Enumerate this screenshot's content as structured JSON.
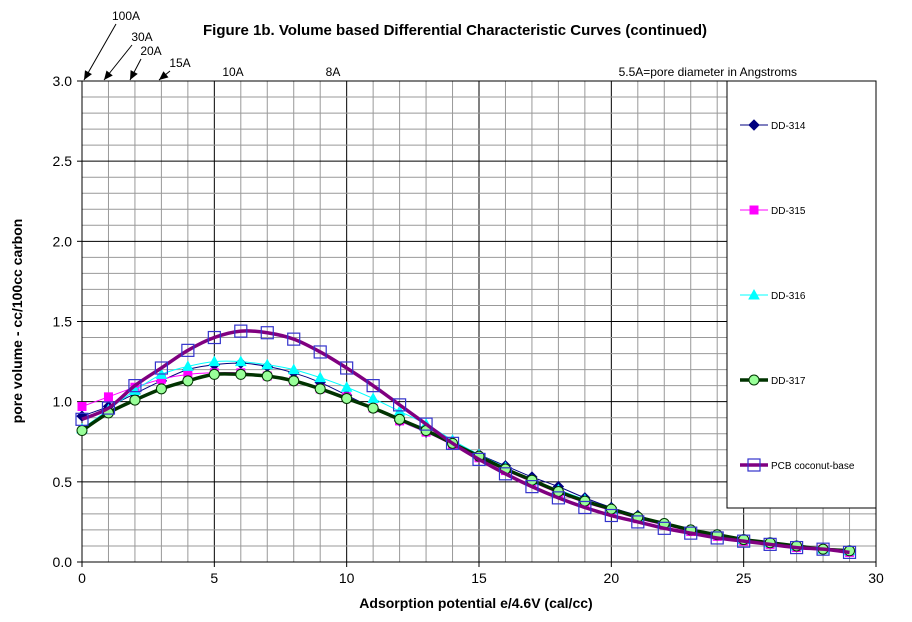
{
  "chart_data": {
    "type": "line",
    "title": "Figure 1b. Volume based Differential Characteristic Curves (continued)",
    "xlabel": "Adsorption potential e/4.6V (cal/cc)",
    "ylabel": "pore volume - cc/100cc carbon",
    "xlim": [
      0,
      30
    ],
    "ylim": [
      0,
      3.0
    ],
    "x_ticks": [
      "0",
      "5",
      "10",
      "15",
      "20",
      "25",
      "30"
    ],
    "y_ticks": [
      "0.0",
      "0.5",
      "1.0",
      "1.5",
      "2.0",
      "2.5",
      "3.0"
    ],
    "x_tick_values": [
      0,
      5,
      10,
      15,
      20,
      25,
      30
    ],
    "y_tick_values": [
      0,
      0.5,
      1.0,
      1.5,
      2.0,
      2.5,
      3.0
    ],
    "grid": true,
    "legend_position": "right",
    "x": [
      0,
      1,
      2,
      3,
      4,
      5,
      6,
      7,
      8,
      9,
      10,
      11,
      12,
      13,
      14,
      15,
      16,
      17,
      18,
      19,
      20,
      21,
      22,
      23,
      24,
      25,
      26,
      27,
      28,
      29
    ],
    "series": [
      {
        "name": "DD-314",
        "color": "#000080",
        "marker": "diamond",
        "values": [
          0.91,
          0.97,
          1.05,
          1.13,
          1.2,
          1.23,
          1.24,
          1.22,
          1.18,
          1.12,
          1.04,
          0.96,
          0.88,
          0.81,
          0.74,
          0.67,
          0.6,
          0.53,
          0.47,
          0.4,
          0.34,
          0.29,
          0.24,
          0.2,
          0.17,
          0.14,
          0.12,
          0.1,
          0.08,
          0.07
        ]
      },
      {
        "name": "DD-315",
        "color": "#ff00ff",
        "marker": "square",
        "values": [
          0.97,
          1.03,
          1.09,
          1.14,
          1.17,
          1.18,
          1.18,
          1.16,
          1.13,
          1.08,
          1.03,
          0.96,
          0.88,
          0.81,
          0.73,
          0.65,
          0.57,
          0.5,
          0.43,
          0.37,
          0.32,
          0.27,
          0.23,
          0.19,
          0.16,
          0.13,
          0.11,
          0.09,
          0.08,
          0.06
        ]
      },
      {
        "name": "DD-316",
        "color": "#00ffff",
        "marker": "triangle",
        "values": [
          0.83,
          0.95,
          1.07,
          1.17,
          1.22,
          1.25,
          1.25,
          1.23,
          1.2,
          1.15,
          1.09,
          1.02,
          0.94,
          0.86,
          0.76,
          0.67,
          0.59,
          0.51,
          0.45,
          0.39,
          0.33,
          0.28,
          0.24,
          0.2,
          0.17,
          0.14,
          0.12,
          0.1,
          0.08,
          0.07
        ]
      },
      {
        "name": "DD-317",
        "color": "#003300",
        "marker": "circle",
        "values": [
          0.82,
          0.93,
          1.01,
          1.08,
          1.13,
          1.17,
          1.17,
          1.16,
          1.13,
          1.08,
          1.02,
          0.96,
          0.89,
          0.82,
          0.74,
          0.66,
          0.58,
          0.51,
          0.44,
          0.38,
          0.33,
          0.28,
          0.24,
          0.2,
          0.17,
          0.14,
          0.12,
          0.1,
          0.08,
          0.07
        ]
      },
      {
        "name": "PCB coconut-base",
        "color": "#800080",
        "marker": "open-square",
        "values": [
          0.89,
          0.96,
          1.1,
          1.21,
          1.32,
          1.4,
          1.44,
          1.43,
          1.39,
          1.31,
          1.21,
          1.1,
          0.98,
          0.86,
          0.74,
          0.64,
          0.55,
          0.47,
          0.4,
          0.34,
          0.29,
          0.25,
          0.21,
          0.18,
          0.15,
          0.13,
          0.11,
          0.09,
          0.08,
          0.06
        ]
      }
    ],
    "annotations": {
      "arrows": [
        {
          "label": "100A",
          "x": 0.2
        },
        {
          "label": "30A",
          "x": 1.0
        },
        {
          "label": "20A",
          "x": 2.0
        },
        {
          "label": "15A",
          "x": 3.0
        }
      ],
      "labels": [
        {
          "label": "10A",
          "x": 5.6
        },
        {
          "label": "8A",
          "x": 9.5
        }
      ],
      "note": "5.5A=pore diameter in Angstroms"
    }
  }
}
